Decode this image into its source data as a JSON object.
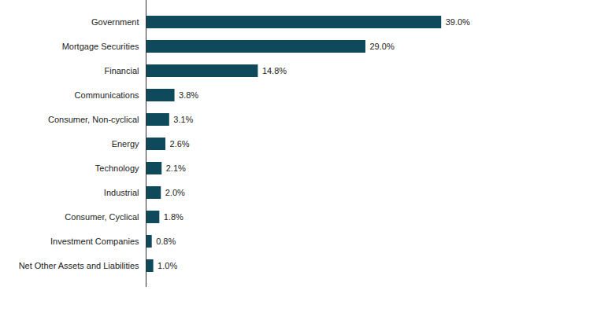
{
  "chart_data": {
    "type": "bar",
    "orientation": "horizontal",
    "categories": [
      "Government",
      "Mortgage Securities",
      "Financial",
      "Communications",
      "Consumer, Non-cyclical",
      "Energy",
      "Technology",
      "Industrial",
      "Consumer, Cyclical",
      "Investment Companies",
      "Net Other Assets and Liabilities"
    ],
    "values": [
      39.0,
      29.0,
      14.8,
      3.8,
      3.1,
      2.6,
      2.1,
      2.0,
      1.8,
      0.8,
      1.0
    ],
    "value_labels": [
      "39.0%",
      "29.0%",
      "14.8%",
      "3.8%",
      "3.1%",
      "2.6%",
      "2.1%",
      "2.0%",
      "1.8%",
      "0.8%",
      "1.0%"
    ],
    "color": "#0e4a5c",
    "xlim": [
      0,
      58
    ],
    "data_labels": true,
    "tick_labels": "y",
    "grid": false
  }
}
